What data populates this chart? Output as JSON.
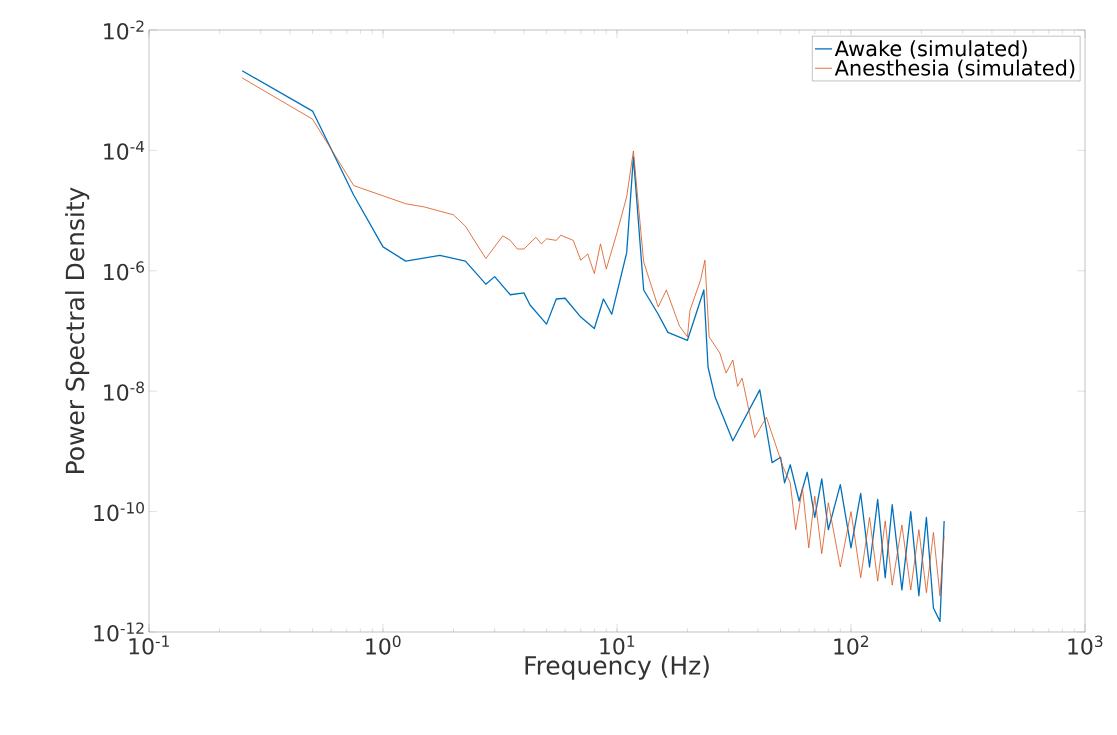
{
  "chart_data": {
    "type": "line",
    "xlabel": "Frequency (Hz)",
    "ylabel": "Power Spectral Density",
    "log": "xy",
    "legend": "top right",
    "grid": false,
    "marker": "none",
    "xlim": [
      0.1,
      1000
    ],
    "ylim": [
      1e-12,
      0.01
    ],
    "xticks": [
      {
        "value": 0.1,
        "label": "10$^{-1}$"
      },
      {
        "value": 1,
        "label": "10$^{0}$"
      },
      {
        "value": 10,
        "label": "10$^{1}$"
      },
      {
        "value": 100,
        "label": "10$^{2}$"
      },
      {
        "value": 1000,
        "label": "10$^{3}$"
      }
    ],
    "yticks": [
      {
        "value": 1e-12,
        "label": "10$^{-12}$"
      },
      {
        "value": 1e-10,
        "label": "10$^{-10}$"
      },
      {
        "value": 1e-08,
        "label": "10$^{-8}$"
      },
      {
        "value": 1e-06,
        "label": "10$^{-6}$"
      },
      {
        "value": 0.0001,
        "label": "10$^{-4}$"
      },
      {
        "value": 0.01,
        "label": "10$^{-2}$"
      }
    ],
    "series": [
      {
        "name": "Awake (simulated)",
        "color": "#0072bd",
        "x": [
          0.25,
          0.5,
          0.75,
          1.0,
          1.25,
          1.75,
          2.25,
          2.75,
          3.0,
          3.5,
          4.0,
          4.25,
          5.0,
          5.5,
          6.0,
          7.0,
          8.0,
          8.75,
          9.5,
          11.0,
          11.75,
          13,
          15,
          16.5,
          20,
          23.5,
          24.5,
          26.25,
          31.25,
          40.75,
          46,
          50,
          52,
          55,
          60,
          65,
          70,
          75,
          80,
          90,
          100,
          110,
          120,
          130,
          140,
          150,
          165,
          180,
          195,
          210,
          225,
          240,
          250
        ],
        "values": [
          0.0021,
          0.00045,
          1.8e-05,
          2.5e-06,
          1.45e-06,
          1.8e-06,
          1.45e-06,
          6e-07,
          8e-07,
          4e-07,
          4.3e-07,
          2.7e-07,
          1.3e-07,
          3.4e-07,
          3.5e-07,
          1.7e-07,
          1.1e-07,
          3.4e-07,
          1.9e-07,
          2e-06,
          7.8e-05,
          4.8e-07,
          1.9e-07,
          9.5e-08,
          7e-08,
          4.8e-07,
          2.5e-08,
          8e-09,
          1.5e-09,
          1.05e-08,
          6.5e-10,
          8e-10,
          3e-10,
          6e-10,
          1.5e-10,
          4.5e-10,
          8e-11,
          3.5e-10,
          5e-11,
          2.8e-10,
          2.5e-11,
          2e-10,
          1.2e-11,
          1.6e-10,
          8e-12,
          1.3e-10,
          5e-12,
          1e-10,
          4e-12,
          8e-11,
          2.5e-12,
          1.5e-12,
          7e-11
        ]
      },
      {
        "name": "Anesthesia (simulated)",
        "color": "#d95319",
        "x": [
          0.25,
          0.5,
          0.75,
          1.25,
          1.5,
          2.0,
          2.25,
          2.75,
          3.25,
          3.5,
          3.75,
          4.0,
          4.5,
          4.75,
          5.0,
          5.5,
          5.75,
          6.5,
          7.0,
          7.5,
          8.0,
          8.5,
          9.0,
          10.0,
          11.0,
          11.75,
          13,
          15,
          16.25,
          18.5,
          20,
          20.5,
          22.75,
          23.75,
          24.75,
          27.5,
          29.25,
          31.25,
          32.75,
          34.25,
          38.75,
          43.5,
          51.25,
          55,
          58,
          62,
          66,
          70,
          75,
          80,
          90,
          100,
          110,
          120,
          130,
          140,
          150,
          165,
          180,
          195,
          210,
          225,
          240,
          250
        ],
        "values": [
          0.0016,
          0.00033,
          2.6e-05,
          1.3e-05,
          1.15e-05,
          8.5e-06,
          5.5e-06,
          1.6e-06,
          3.8e-06,
          3.2e-06,
          2.3e-06,
          2.3e-06,
          3.6e-06,
          2.8e-06,
          3.4e-06,
          3.2e-06,
          3.9e-06,
          3.2e-06,
          1.5e-06,
          1.9e-06,
          9e-07,
          2.8e-06,
          1.07e-06,
          4.3e-06,
          1.7e-05,
          9.8e-05,
          1.4e-06,
          2.5e-07,
          4.8e-07,
          1.2e-07,
          8e-08,
          2.2e-07,
          7e-07,
          1.5e-06,
          8e-08,
          4.3e-08,
          2e-08,
          3.3e-08,
          1.2e-08,
          1.65e-08,
          1.7e-09,
          3.7e-09,
          5.5e-10,
          3e-10,
          5e-11,
          2.5e-10,
          2.5e-11,
          1.8e-10,
          2e-11,
          1.4e-10,
          1.2e-11,
          1e-10,
          8e-12,
          8e-11,
          7e-12,
          7e-11,
          6e-12,
          6e-11,
          5e-12,
          5e-11,
          4.5e-12,
          4.5e-11,
          4e-12,
          4e-11
        ]
      }
    ]
  }
}
